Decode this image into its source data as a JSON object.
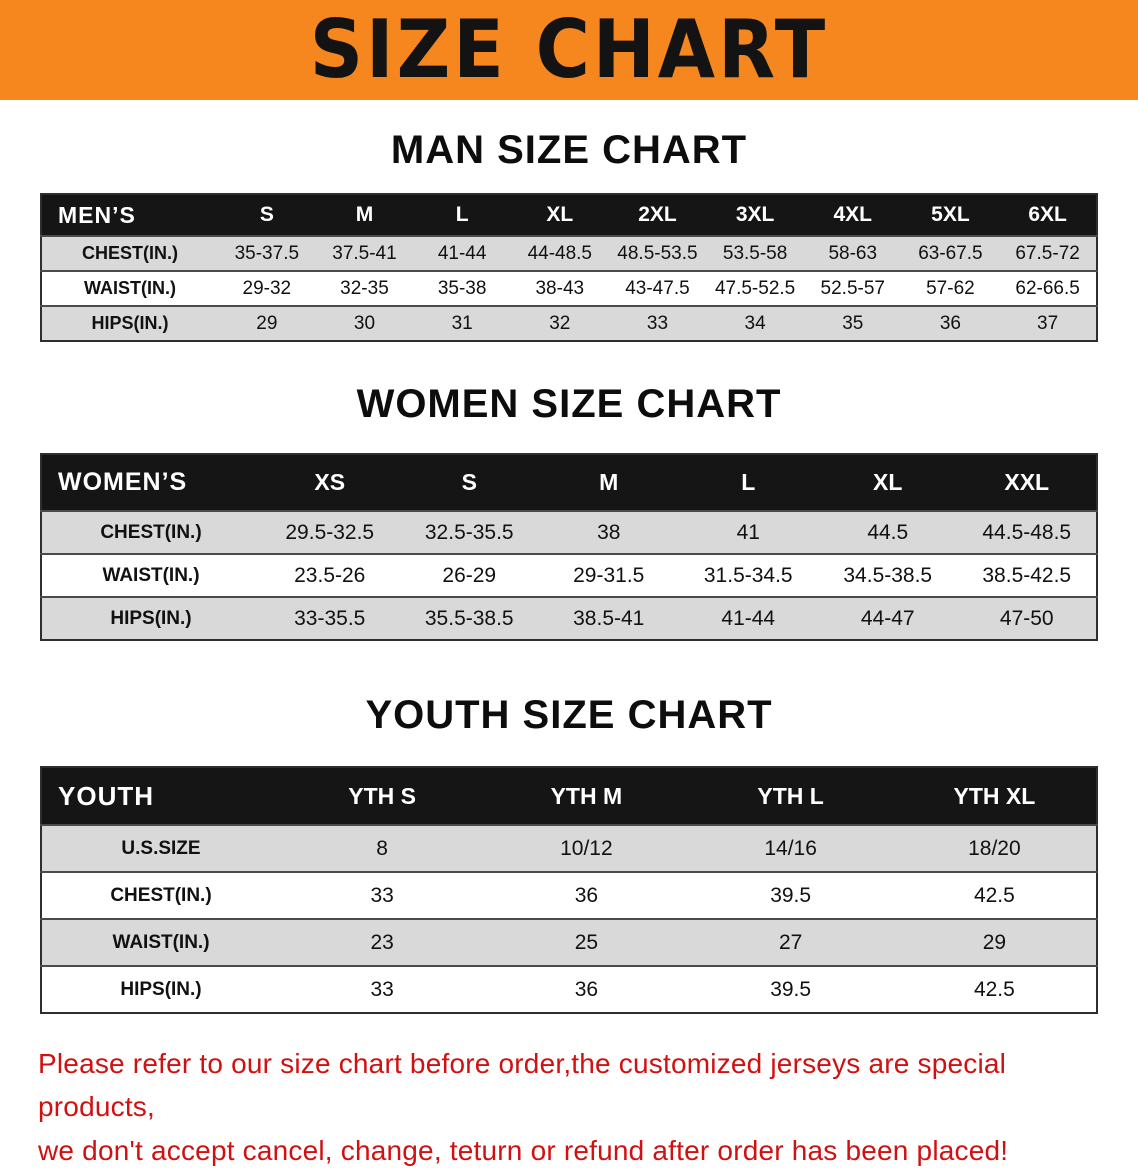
{
  "banner": {
    "title": "SIZE CHART",
    "background_color": "#f6871f"
  },
  "colors": {
    "table_header_bg": "#151515",
    "row_stripe_gray": "#d9d9d9",
    "disclaimer_red": "#d01111"
  },
  "sections": [
    {
      "id": "men",
      "title": "MAN SIZE CHART",
      "table": {
        "header": [
          "MEN’S",
          "S",
          "M",
          "L",
          "XL",
          "2XL",
          "3XL",
          "4XL",
          "5XL",
          "6XL"
        ],
        "rows": [
          [
            "CHEST(IN.)",
            "35-37.5",
            "37.5-41",
            "41-44",
            "44-48.5",
            "48.5-53.5",
            "53.5-58",
            "58-63",
            "63-67.5",
            "67.5-72"
          ],
          [
            "WAIST(IN.)",
            "29-32",
            "32-35",
            "35-38",
            "38-43",
            "43-47.5",
            "47.5-52.5",
            "52.5-57",
            "57-62",
            "62-66.5"
          ],
          [
            "HIPS(IN.)",
            "29",
            "30",
            "31",
            "32",
            "33",
            "34",
            "35",
            "36",
            "37"
          ]
        ]
      }
    },
    {
      "id": "women",
      "title": "WOMEN SIZE CHART",
      "table": {
        "header": [
          "WOMEN’S",
          "XS",
          "S",
          "M",
          "L",
          "XL",
          "XXL"
        ],
        "rows": [
          [
            "CHEST(IN.)",
            "29.5-32.5",
            "32.5-35.5",
            "38",
            "41",
            "44.5",
            "44.5-48.5"
          ],
          [
            "WAIST(IN.)",
            "23.5-26",
            "26-29",
            "29-31.5",
            "31.5-34.5",
            "34.5-38.5",
            "38.5-42.5"
          ],
          [
            "HIPS(IN.)",
            "33-35.5",
            "35.5-38.5",
            "38.5-41",
            "41-44",
            "44-47",
            "47-50"
          ]
        ]
      }
    },
    {
      "id": "youth",
      "title": "YOUTH SIZE CHART",
      "table": {
        "header": [
          "YOUTH",
          "YTH S",
          "YTH M",
          "YTH L",
          "YTH XL"
        ],
        "rows": [
          [
            "U.S.SIZE",
            "8",
            "10/12",
            "14/16",
            "18/20"
          ],
          [
            "CHEST(IN.)",
            "33",
            "36",
            "39.5",
            "42.5"
          ],
          [
            "WAIST(IN.)",
            "23",
            "25",
            "27",
            "29"
          ],
          [
            "HIPS(IN.)",
            "33",
            "36",
            "39.5",
            "42.5"
          ]
        ]
      }
    }
  ],
  "disclaimer": {
    "line1": "Please refer to our size chart before order,the customized jerseys are special products,",
    "line2": "we don't accept cancel, change, teturn or refund after order has been placed!"
  }
}
